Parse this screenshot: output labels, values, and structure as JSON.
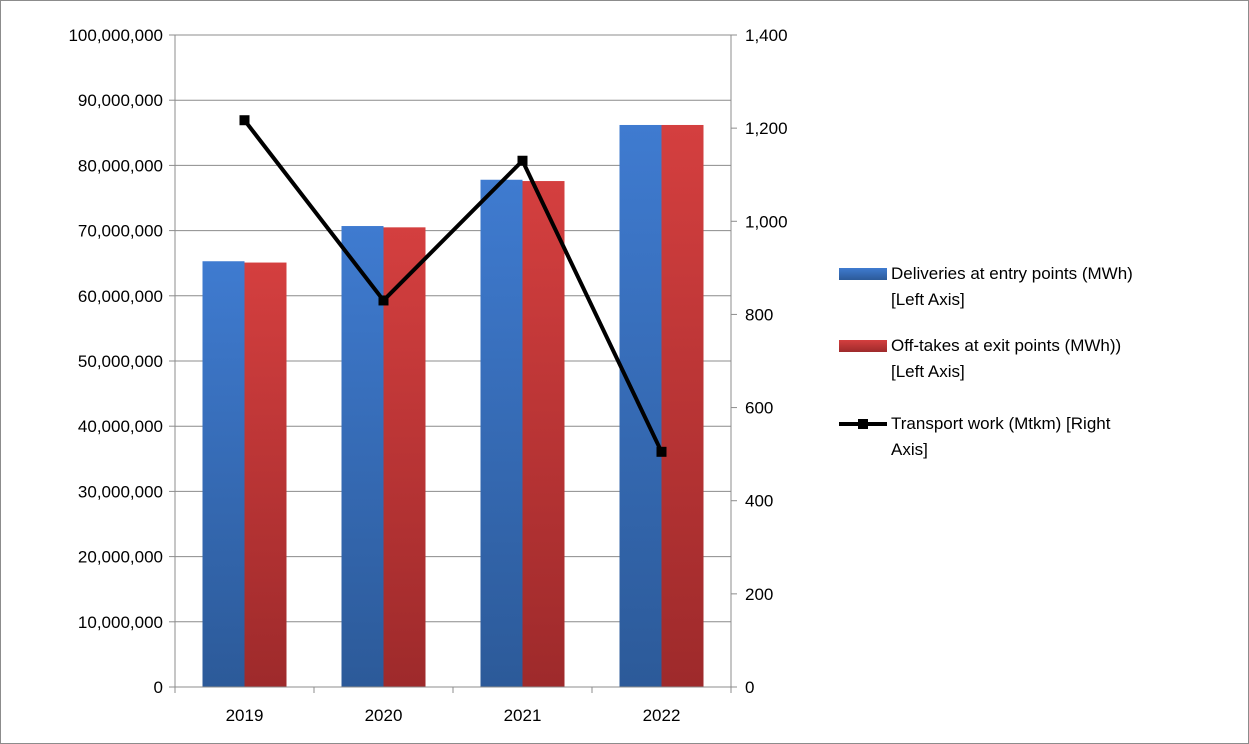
{
  "chart_data": {
    "type": "bar",
    "categories": [
      "2019",
      "2020",
      "2021",
      "2022"
    ],
    "series": [
      {
        "name_lines": [
          "Deliveries at entry points (MWh)",
          "[Left Axis]"
        ],
        "kind": "bar",
        "axis": "left",
        "color": "#3a72c4",
        "values": [
          65300000,
          70700000,
          77800000,
          86200000
        ]
      },
      {
        "name_lines": [
          "Off-takes at exit points (MWh))",
          "[Left Axis]"
        ],
        "kind": "bar",
        "axis": "left",
        "color": "#c9383a",
        "values": [
          65100000,
          70500000,
          77600000,
          86200000
        ]
      },
      {
        "name_lines": [
          "Transport work (Mtkm) [Right",
          "Axis]"
        ],
        "kind": "line",
        "axis": "right",
        "color": "#000000",
        "values": [
          1217,
          830,
          1130,
          505
        ]
      }
    ],
    "left_axis": {
      "ylim": [
        0,
        100000000
      ],
      "ticks": [
        "0",
        "10,000,000",
        "20,000,000",
        "30,000,000",
        "40,000,000",
        "50,000,000",
        "60,000,000",
        "70,000,000",
        "80,000,000",
        "90,000,000",
        "100,000,000"
      ]
    },
    "right_axis": {
      "ylim": [
        0,
        1400
      ],
      "ticks": [
        "0",
        "200",
        "400",
        "600",
        "800",
        "1,000",
        "1,200",
        "1,400"
      ]
    },
    "grid": true,
    "legend_position": "right"
  }
}
